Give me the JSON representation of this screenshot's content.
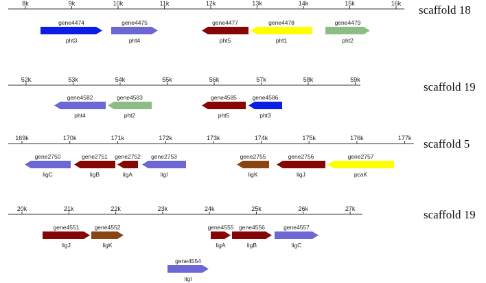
{
  "colors": {
    "blue": "#0a1ee6",
    "purple": "#6d67d6",
    "darkred": "#860606",
    "yellow": "#ffff00",
    "green": "#8dbc86",
    "brown": "#8b4513",
    "axis": "#333333"
  },
  "tracks": [
    {
      "title": "scaffold 18",
      "ticks": [
        "8k",
        "9k",
        "10k",
        "11k",
        "12k",
        "13k",
        "14k",
        "15k",
        "16k"
      ],
      "genes": [
        {
          "name": "gene4474",
          "sub": "pht3",
          "dir": "right",
          "color": "blue"
        },
        {
          "name": "gene4475",
          "sub": "pht4",
          "dir": "right",
          "color": "purple"
        },
        {
          "name": "gene4477",
          "sub": "pht5",
          "dir": "left",
          "color": "darkred"
        },
        {
          "name": "gene4478",
          "sub": "pht1",
          "dir": "left",
          "color": "yellow"
        },
        {
          "name": "gene4479",
          "sub": "pht2",
          "dir": "right",
          "color": "green"
        }
      ]
    },
    {
      "title": "scaffold 19",
      "ticks": [
        "52k",
        "53k",
        "54k",
        "55k",
        "56k",
        "57k",
        "58k",
        "59k"
      ],
      "genes": [
        {
          "name": "gene4582",
          "sub": "pht4",
          "dir": "left",
          "color": "purple"
        },
        {
          "name": "gene4583",
          "sub": "pht2",
          "dir": "left",
          "color": "green"
        },
        {
          "name": "gene4585",
          "sub": "pht5",
          "dir": "left",
          "color": "darkred"
        },
        {
          "name": "gene4586",
          "sub": "pht3",
          "dir": "left",
          "color": "blue"
        }
      ]
    },
    {
      "title": "scaffold 5",
      "ticks": [
        "169k",
        "170k",
        "171k",
        "172k",
        "173k",
        "174k",
        "175k",
        "176k",
        "177k"
      ],
      "genes": [
        {
          "name": "gene2750",
          "sub": "ligC",
          "dir": "left",
          "color": "purple"
        },
        {
          "name": "gene2751",
          "sub": "ligB",
          "dir": "left",
          "color": "darkred"
        },
        {
          "name": "gene2752",
          "sub": "ligA",
          "dir": "left",
          "color": "darkred"
        },
        {
          "name": "gene2753",
          "sub": "ligI",
          "dir": "left",
          "color": "purple"
        },
        {
          "name": "gene2755",
          "sub": "ligK",
          "dir": "left",
          "color": "brown"
        },
        {
          "name": "gene2756",
          "sub": "ligJ",
          "dir": "left",
          "color": "darkred"
        },
        {
          "name": "gene2757",
          "sub": "pcaK",
          "dir": "left",
          "color": "yellow"
        }
      ]
    },
    {
      "title": "scaffold 19",
      "ticks": [
        "20k",
        "21k",
        "22k",
        "23k",
        "24k",
        "25k",
        "26k",
        "27k"
      ],
      "genes": [
        {
          "name": "gene4551",
          "sub": "ligJ",
          "dir": "right",
          "color": "darkred"
        },
        {
          "name": "gene4552",
          "sub": "ligK",
          "dir": "right",
          "color": "brown"
        },
        {
          "name": "gene4555",
          "sub": "ligA",
          "dir": "right",
          "color": "darkred"
        },
        {
          "name": "gene4556",
          "sub": "ligB",
          "dir": "right",
          "color": "darkred"
        },
        {
          "name": "gene4557",
          "sub": "ligC",
          "dir": "right",
          "color": "purple"
        },
        {
          "name": "gene4554",
          "sub": "ligI",
          "dir": "right",
          "color": "purple"
        }
      ]
    }
  ]
}
